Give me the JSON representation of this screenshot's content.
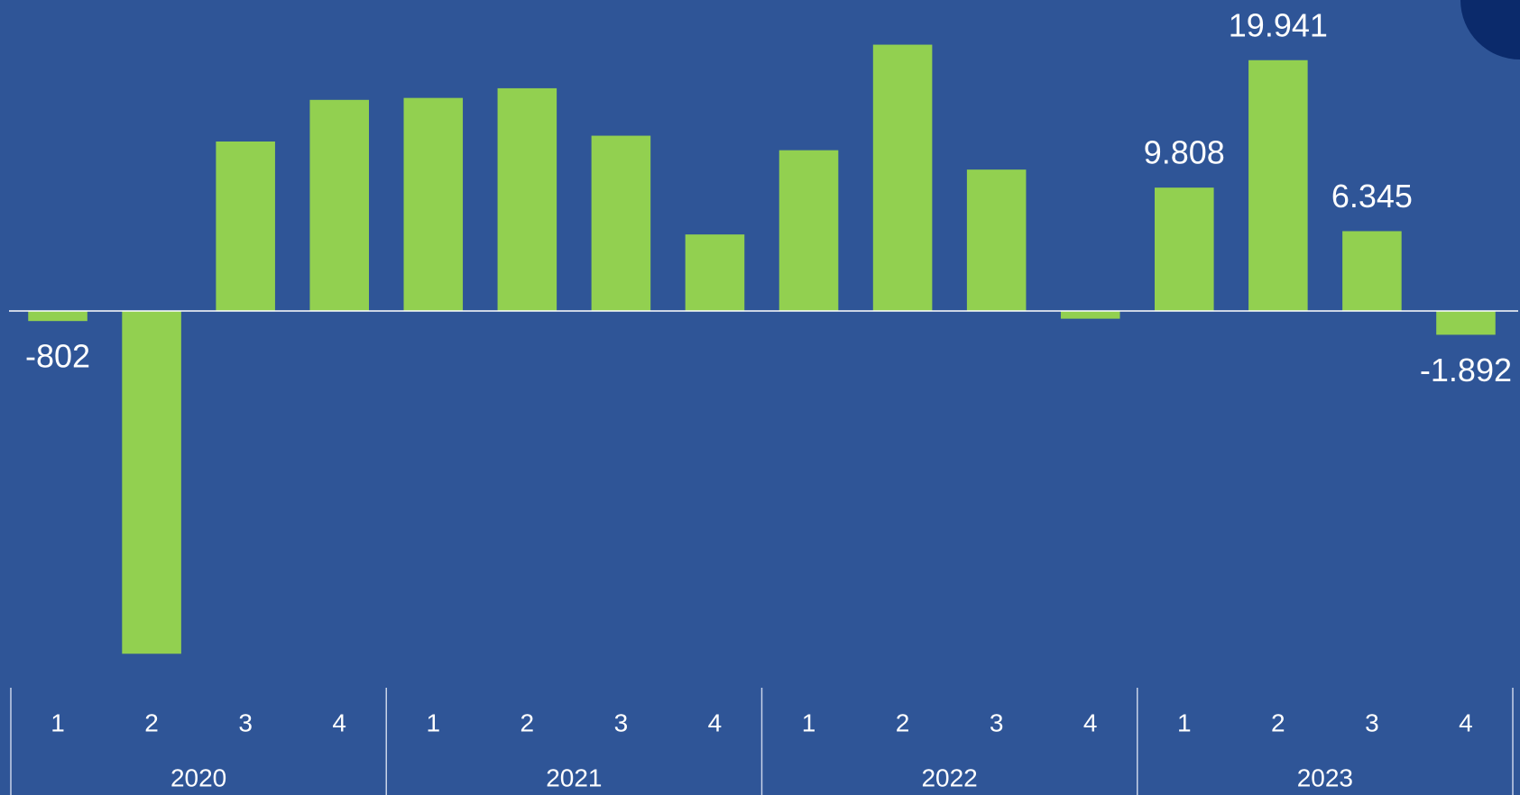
{
  "chart_data": {
    "type": "bar",
    "categories": [
      "1",
      "2",
      "3",
      "4",
      "1",
      "2",
      "3",
      "4",
      "1",
      "2",
      "3",
      "4",
      "1",
      "2",
      "3",
      "4"
    ],
    "groups": [
      "2020",
      "2021",
      "2022",
      "2023"
    ],
    "values": [
      -802,
      -27256,
      13474,
      16785,
      16939,
      17709,
      13936,
      6083,
      12781,
      21174,
      11241,
      -616,
      9808,
      19941,
      6345,
      -1892
    ],
    "value_labels": [
      "-802",
      null,
      null,
      null,
      null,
      null,
      null,
      null,
      null,
      null,
      null,
      null,
      "9.808",
      "19.941",
      "6.345",
      "-1.892"
    ],
    "color": "#92d050",
    "ylim": [
      -29170,
      24726
    ]
  }
}
